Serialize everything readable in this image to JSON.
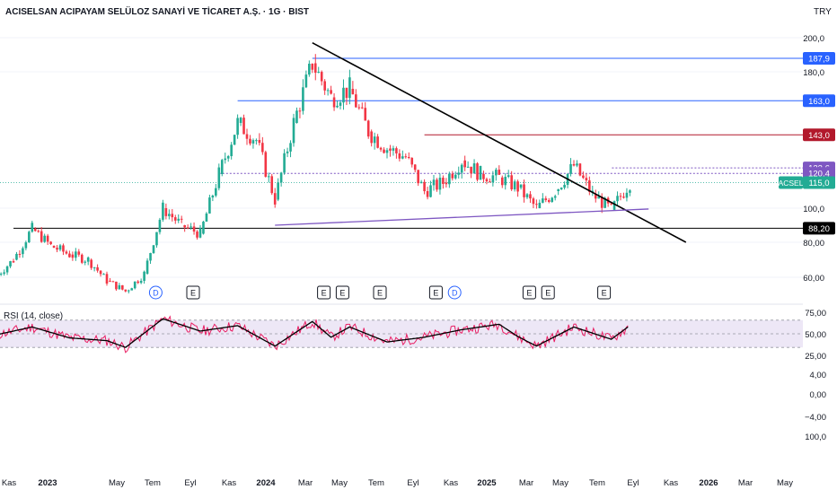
{
  "header": {
    "title": "ACISELSAN ACIPAYAM SELÜLOZ SANAYİ VE TİCARET A.Ş. · 1G · BIST",
    "currency": "TRY"
  },
  "colors": {
    "up": "#22ab94",
    "down": "#f23645",
    "blue_level": "#2962ff",
    "red_level": "#b2182b",
    "purple": "#7e57c2",
    "trend": "#000000",
    "rsi_line": "#e91e63",
    "rsi_ma": "#000000",
    "rsi_band": "#ede7f6"
  },
  "chart_data": [
    {
      "type": "candlestick",
      "symbol": "ACSEL",
      "current_price": "115,0",
      "price_axis_ticks": [
        "200,0",
        "180,0",
        "100,0",
        "80,00",
        "60,00"
      ],
      "price_labels": [
        {
          "value": 187.9,
          "text": "187,9",
          "color": "#2962ff"
        },
        {
          "value": 163.0,
          "text": "163,0",
          "color": "#2962ff"
        },
        {
          "value": 143.0,
          "text": "143,0",
          "color": "#b2182b"
        },
        {
          "value": 123.6,
          "text": "123,6",
          "color": "#7e57c2"
        },
        {
          "value": 120.4,
          "text": "120,4",
          "color": "#7e57c2"
        },
        {
          "value": 88.2,
          "text": "88,20",
          "color": "#000000"
        }
      ],
      "x_axis_labels": [
        "Kas",
        "2023",
        "May",
        "Tem",
        "Eyl",
        "Kas",
        "2024",
        "Mar",
        "May",
        "Tem",
        "Eyl",
        "Kas",
        "2025",
        "Mar",
        "May",
        "Tem",
        "Eyl",
        "Kas",
        "2026",
        "Mar",
        "May"
      ],
      "event_markers": [
        "D",
        "E",
        "E",
        "E",
        "E",
        "E",
        "D",
        "E",
        "E",
        "E"
      ],
      "horizontal_levels": [
        187.9,
        163.0,
        143.0,
        120.4,
        88.2
      ],
      "trendlines": [
        {
          "name": "descending resistance",
          "from": [
            "2024-03",
            197
          ],
          "to": [
            "2025-11",
            80
          ]
        },
        {
          "name": "rising support",
          "from": [
            "2024-01",
            90
          ],
          "to": [
            "2025-09",
            99.5
          ]
        }
      ],
      "price_path": [
        {
          "date": "2022-10",
          "price": 60
        },
        {
          "date": "2022-11",
          "price": 70
        },
        {
          "date": "2022-12",
          "price": 88
        },
        {
          "date": "2023-01",
          "price": 78
        },
        {
          "date": "2023-02",
          "price": 73
        },
        {
          "date": "2023-03",
          "price": 70
        },
        {
          "date": "2023-04",
          "price": 58
        },
        {
          "date": "2023-05",
          "price": 52
        },
        {
          "date": "2023-06",
          "price": 62
        },
        {
          "date": "2023-07",
          "price": 100
        },
        {
          "date": "2023-08",
          "price": 90
        },
        {
          "date": "2023-09",
          "price": 85
        },
        {
          "date": "2023-10",
          "price": 120
        },
        {
          "date": "2023-11",
          "price": 150
        },
        {
          "date": "2023-12",
          "price": 140
        },
        {
          "date": "2024-01",
          "price": 105
        },
        {
          "date": "2024-02",
          "price": 150
        },
        {
          "date": "2024-03",
          "price": 185
        },
        {
          "date": "2024-04",
          "price": 165
        },
        {
          "date": "2024-05",
          "price": 170
        },
        {
          "date": "2024-06",
          "price": 145
        },
        {
          "date": "2024-07",
          "price": 135
        },
        {
          "date": "2024-08",
          "price": 130
        },
        {
          "date": "2024-09",
          "price": 110
        },
        {
          "date": "2024-10",
          "price": 115
        },
        {
          "date": "2024-11",
          "price": 128
        },
        {
          "date": "2024-12",
          "price": 120
        },
        {
          "date": "2025-01",
          "price": 118
        },
        {
          "date": "2025-02",
          "price": 112
        },
        {
          "date": "2025-03",
          "price": 100
        },
        {
          "date": "2025-04",
          "price": 110
        },
        {
          "date": "2025-05",
          "price": 125
        },
        {
          "date": "2025-06",
          "price": 108
        },
        {
          "date": "2025-07",
          "price": 99
        },
        {
          "date": "2025-08",
          "price": 115
        }
      ]
    },
    {
      "type": "line",
      "name_label": "RSI (14, close)",
      "axis_ticks": [
        "75,00",
        "50,00",
        "25,00",
        "4,00",
        "0,00",
        "−4,00",
        "100,0"
      ],
      "levels": [
        70,
        50,
        30
      ],
      "values": [
        {
          "date": "2022-10",
          "rsi": 48
        },
        {
          "date": "2022-12",
          "rsi": 60
        },
        {
          "date": "2023-02",
          "rsi": 44
        },
        {
          "date": "2023-04",
          "rsi": 40
        },
        {
          "date": "2023-05",
          "rsi": 30
        },
        {
          "date": "2023-07",
          "rsi": 72
        },
        {
          "date": "2023-09",
          "rsi": 54
        },
        {
          "date": "2023-11",
          "rsi": 62
        },
        {
          "date": "2024-01",
          "rsi": 32
        },
        {
          "date": "2024-03",
          "rsi": 68
        },
        {
          "date": "2024-04",
          "rsi": 45
        },
        {
          "date": "2024-05",
          "rsi": 60
        },
        {
          "date": "2024-07",
          "rsi": 38
        },
        {
          "date": "2024-09",
          "rsi": 45
        },
        {
          "date": "2024-11",
          "rsi": 56
        },
        {
          "date": "2025-01",
          "rsi": 64
        },
        {
          "date": "2025-02",
          "rsi": 46
        },
        {
          "date": "2025-03",
          "rsi": 32
        },
        {
          "date": "2025-05",
          "rsi": 60
        },
        {
          "date": "2025-07",
          "rsi": 42
        },
        {
          "date": "2025-08",
          "rsi": 62
        }
      ]
    }
  ]
}
